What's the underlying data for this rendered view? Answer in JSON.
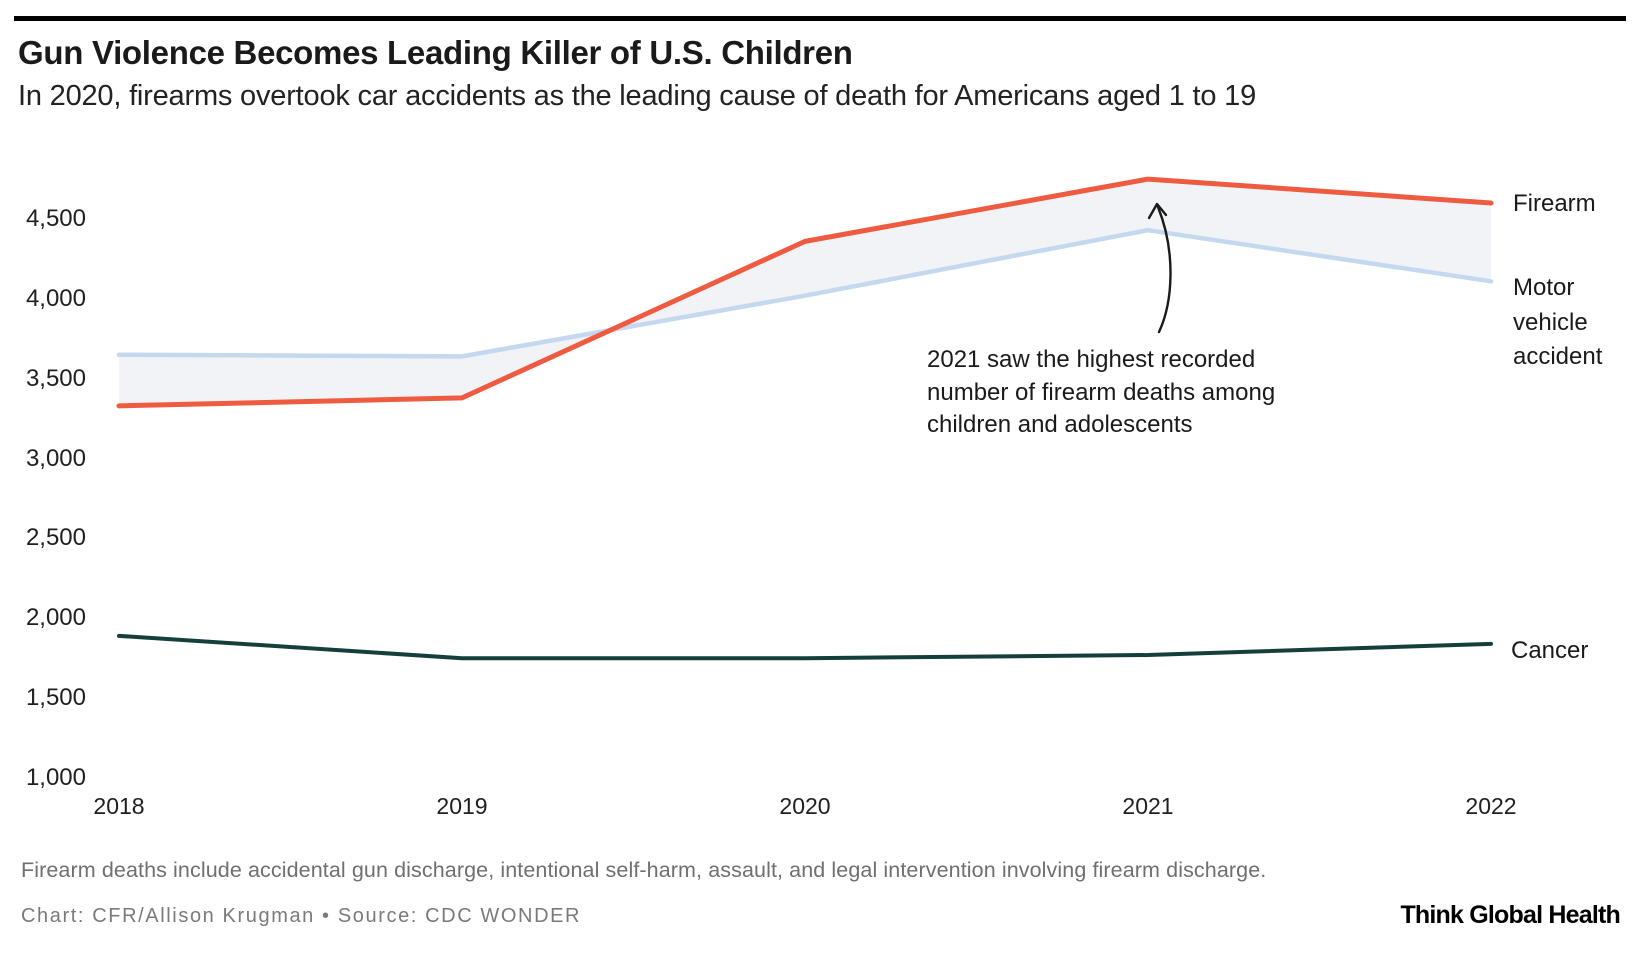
{
  "page": {
    "title": "Gun Violence Becomes Leading Killer of U.S. Children",
    "subtitle": "In 2020, firearms overtook car accidents as the leading cause of death for Americans aged 1 to 19"
  },
  "footer": {
    "note": "Firearm deaths include accidental gun discharge, intentional self-harm, assault, and legal intervention involving firearm discharge.",
    "credit": "Chart: CFR/Allison Krugman • Source: CDC WONDER",
    "logo": "Think Global Health"
  },
  "colors": {
    "firearm": "#ef5b40",
    "motor_vehicle": "#c4d8f0",
    "cancer": "#143f3b",
    "band": "#f1f3f6",
    "annotation_arrow": "#1a1a1a",
    "text_dark": "#1a1a1a",
    "text_gray": "#6f6f6f",
    "top_rule": "#000000"
  },
  "chart_data": {
    "type": "line",
    "x": [
      "2018",
      "2019",
      "2020",
      "2021",
      "2022"
    ],
    "series": [
      {
        "name": "Firearm",
        "color_key": "firearm",
        "values": [
          3330,
          3380,
          4360,
          4750,
          4600
        ]
      },
      {
        "name": "Motor vehicle accident",
        "color_key": "motor_vehicle",
        "values": [
          3650,
          3640,
          4020,
          4430,
          4110
        ]
      },
      {
        "name": "Cancer",
        "color_key": "cancer",
        "values": [
          1890,
          1750,
          1750,
          1770,
          1840
        ]
      }
    ],
    "band_between": [
      "Firearm",
      "Motor vehicle accident"
    ],
    "yticks": [
      4500,
      4000,
      3500,
      3000,
      2500,
      2000,
      1500,
      1000
    ],
    "ytick_labels": [
      "4,500",
      "4,000",
      "3,500",
      "3,000",
      "2,500",
      "2,000",
      "1,500",
      "1,000"
    ],
    "ylim": [
      1000,
      4800
    ],
    "grid": false,
    "axis_lines": false,
    "legend_position": "right-of-line-ends",
    "annotation": {
      "lines": [
        "2021 saw the highest recorded",
        "number of firearm deaths among",
        "children and adolescents"
      ],
      "points_to": "2021 peak"
    }
  }
}
